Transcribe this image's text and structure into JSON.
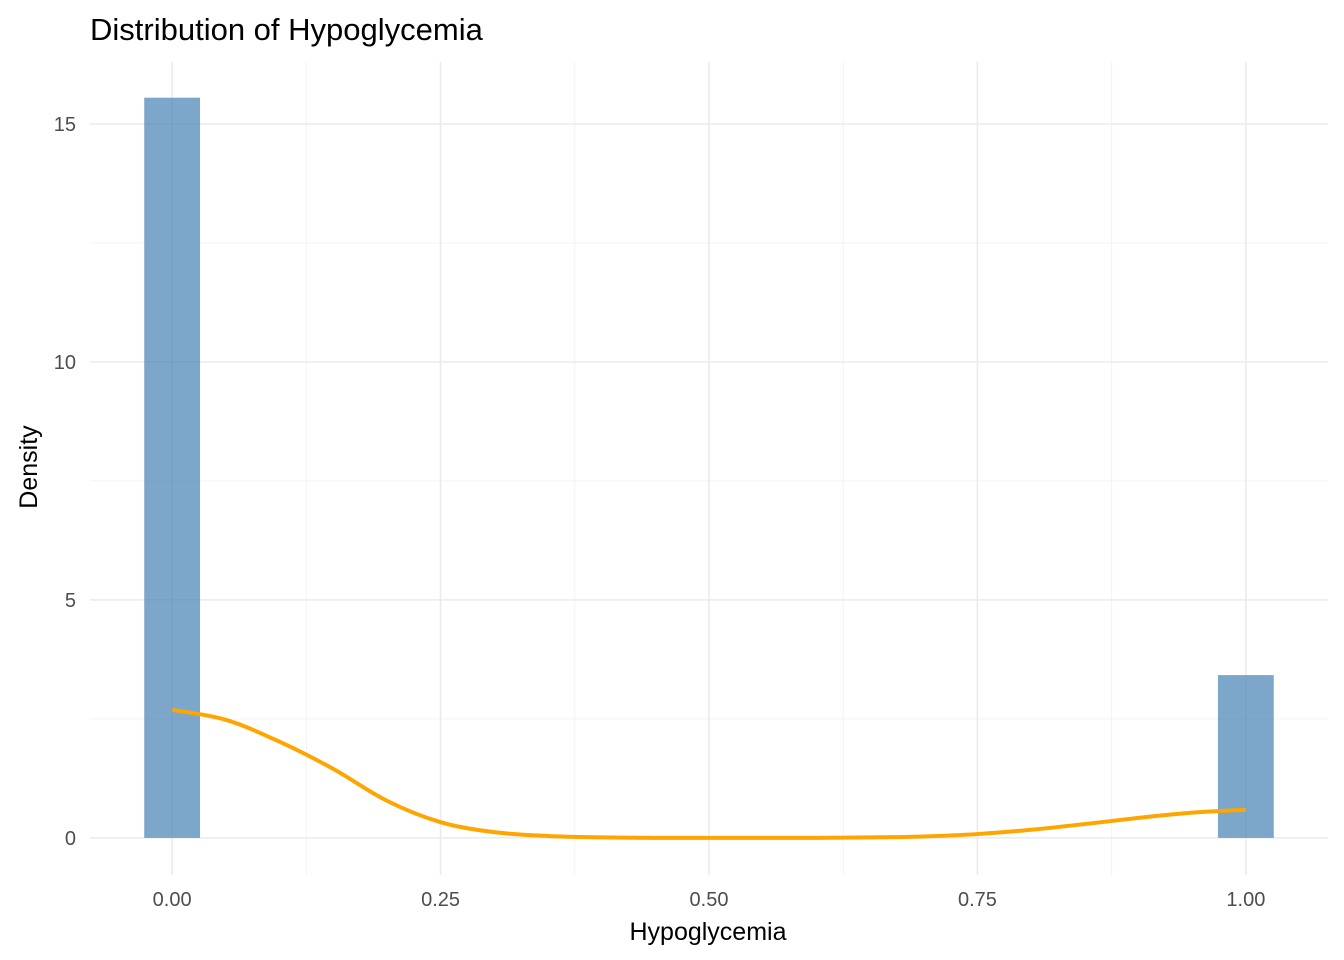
{
  "chart_data": {
    "type": "histogram",
    "title": "Distribution of Hypoglycemia",
    "xlabel": "Hypoglycemia",
    "ylabel": "Density",
    "xlim": [
      -0.0765,
      1.0765
    ],
    "ylim": [
      -0.78,
      16.3
    ],
    "x_ticks": [
      0.0,
      0.25,
      0.5,
      0.75,
      1.0
    ],
    "x_tick_labels": [
      "0.00",
      "0.25",
      "0.50",
      "0.75",
      "1.00"
    ],
    "y_ticks": [
      0,
      5,
      10,
      15
    ],
    "y_tick_labels": [
      "0",
      "5",
      "10",
      "15"
    ],
    "grid": true,
    "bars": [
      {
        "x_min": -0.026,
        "x_max": 0.026,
        "density": 15.55
      },
      {
        "x_min": 0.974,
        "x_max": 1.026,
        "density": 3.42
      }
    ],
    "bar_color": "#4682b4",
    "bar_opacity": 0.7,
    "density_curve": {
      "color": "#ffa500",
      "x": [
        0.0,
        0.05,
        0.1,
        0.15,
        0.2,
        0.25,
        0.3,
        0.35,
        0.4,
        0.45,
        0.5,
        0.55,
        0.6,
        0.65,
        0.7,
        0.75,
        0.8,
        0.85,
        0.9,
        0.95,
        1.0
      ],
      "y": [
        2.69,
        2.48,
        2.02,
        1.45,
        0.78,
        0.33,
        0.12,
        0.04,
        0.01,
        0.0,
        0.0,
        0.0,
        0.0,
        0.01,
        0.03,
        0.08,
        0.17,
        0.29,
        0.42,
        0.53,
        0.59
      ]
    }
  }
}
